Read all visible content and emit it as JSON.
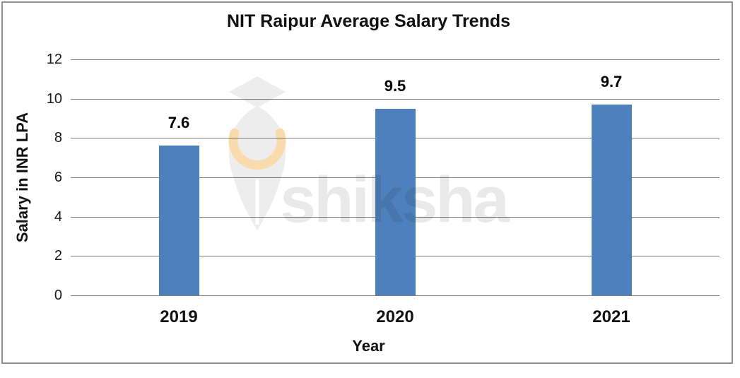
{
  "chart_data": {
    "type": "bar",
    "title": "NIT Raipur Average Salary Trends",
    "categories": [
      "2019",
      "2020",
      "2021"
    ],
    "values": [
      7.6,
      9.5,
      9.7
    ],
    "data_labels": [
      "7.6",
      "9.5",
      "9.7"
    ],
    "xlabel": "Year",
    "ylabel": "Salary in INR LPA",
    "ylim": [
      0,
      12
    ],
    "yticks": [
      0,
      2,
      4,
      6,
      8,
      10,
      12
    ],
    "grid": true,
    "legend": "none",
    "bar_color": "#4d80bc",
    "gridline_color": "#7f7f7f"
  },
  "watermark": {
    "text": "shiksha",
    "logo": "shiksha-pen-nib-logo",
    "text_color": "#e9e9e9",
    "logo_color": "#ededed",
    "crescent_color": "#f8dcae",
    "slit_color": "#ffffff"
  },
  "frame": {
    "border_color": "#8f8f8f",
    "background": "#ffffff"
  }
}
